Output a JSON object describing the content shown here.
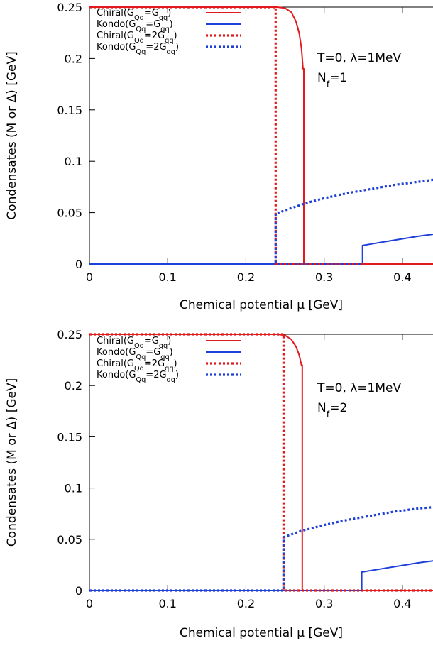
{
  "chart_data": [
    {
      "type": "line",
      "xlabel": "Chemical potential μ [GeV]",
      "ylabel": "Condensates (M or Δ) [GeV]",
      "xlim": [
        0,
        0.45
      ],
      "ylim": [
        0,
        0.25
      ],
      "xticks": [
        0,
        0.1,
        0.2,
        0.3,
        0.4
      ],
      "xtick_labels": [
        "0",
        "0.1",
        "0.2",
        "0.3",
        "0.4"
      ],
      "yticks": [
        0,
        0.05,
        0.1,
        0.15,
        0.2,
        0.25
      ],
      "ytick_labels": [
        "0",
        "0.05",
        "0.1",
        "0.15",
        "0.2",
        "0.25"
      ],
      "annotation": [
        "T=0, λ=1MeV",
        "Nf=1"
      ],
      "legend": {
        "placement": "top-left"
      },
      "series": [
        {
          "name": "Chiral(GQq=Gqq)",
          "color": "#e31a1c",
          "style": "solid",
          "points": [
            [
              0,
              0.25
            ],
            [
              0.24,
              0.25
            ],
            [
              0.25,
              0.249
            ],
            [
              0.258,
              0.245
            ],
            [
              0.264,
              0.236
            ],
            [
              0.268,
              0.225
            ],
            [
              0.271,
              0.21
            ],
            [
              0.273,
              0.19
            ],
            [
              0.274,
              0.19
            ],
            [
              0.274,
              0
            ],
            [
              0.45,
              0
            ]
          ]
        },
        {
          "name": "Kondo(GQq=Gqq)",
          "color": "#1f3fd9",
          "style": "solid",
          "points": [
            [
              0,
              0
            ],
            [
              0.349,
              0
            ],
            [
              0.349,
              0.018
            ],
            [
              0.36,
              0.0195
            ],
            [
              0.38,
              0.022
            ],
            [
              0.4,
              0.0245
            ],
            [
              0.42,
              0.027
            ],
            [
              0.45,
              0.03
            ]
          ]
        },
        {
          "name": "Chiral(GQq=2Gqq)",
          "color": "#e31a1c",
          "style": "dotted",
          "points": [
            [
              0,
              0.25
            ],
            [
              0.238,
              0.25
            ],
            [
              0.238,
              0
            ],
            [
              0.45,
              0
            ]
          ]
        },
        {
          "name": "Kondo(GQq=2Gqq)",
          "color": "#1f3fd9",
          "style": "dotted",
          "points": [
            [
              0,
              0
            ],
            [
              0.238,
              0
            ],
            [
              0.238,
              0.049
            ],
            [
              0.26,
              0.055
            ],
            [
              0.28,
              0.06
            ],
            [
              0.3,
              0.064
            ],
            [
              0.33,
              0.069
            ],
            [
              0.36,
              0.073
            ],
            [
              0.39,
              0.077
            ],
            [
              0.42,
              0.08
            ],
            [
              0.45,
              0.083
            ]
          ]
        }
      ]
    },
    {
      "type": "line",
      "xlabel": "Chemical potential μ [GeV]",
      "ylabel": "Condensates (M or Δ) [GeV]",
      "xlim": [
        0,
        0.45
      ],
      "ylim": [
        0,
        0.25
      ],
      "xticks": [
        0,
        0.1,
        0.2,
        0.3,
        0.4
      ],
      "xtick_labels": [
        "0",
        "0.1",
        "0.2",
        "0.3",
        "0.4"
      ],
      "yticks": [
        0,
        0.05,
        0.1,
        0.15,
        0.2,
        0.25
      ],
      "ytick_labels": [
        "0",
        "0.05",
        "0.1",
        "0.15",
        "0.2",
        "0.25"
      ],
      "annotation": [
        "T=0, λ=1MeV",
        "Nf=2"
      ],
      "legend": {
        "placement": "top-left"
      },
      "series": [
        {
          "name": "Chiral(GQq=Gqq)",
          "color": "#e31a1c",
          "style": "solid",
          "points": [
            [
              0,
              0.25
            ],
            [
              0.24,
              0.25
            ],
            [
              0.25,
              0.249
            ],
            [
              0.258,
              0.245
            ],
            [
              0.264,
              0.238
            ],
            [
              0.268,
              0.23
            ],
            [
              0.271,
              0.22
            ],
            [
              0.272,
              0.22
            ],
            [
              0.272,
              0
            ],
            [
              0.45,
              0
            ]
          ]
        },
        {
          "name": "Kondo(GQq=Gqq)",
          "color": "#1f3fd9",
          "style": "solid",
          "points": [
            [
              0,
              0
            ],
            [
              0.348,
              0
            ],
            [
              0.348,
              0.018
            ],
            [
              0.36,
              0.0195
            ],
            [
              0.38,
              0.022
            ],
            [
              0.4,
              0.0245
            ],
            [
              0.42,
              0.027
            ],
            [
              0.45,
              0.03
            ]
          ]
        },
        {
          "name": "Chiral(GQq=2Gqq)",
          "color": "#e31a1c",
          "style": "dotted",
          "points": [
            [
              0,
              0.25
            ],
            [
              0.248,
              0.25
            ],
            [
              0.248,
              0
            ],
            [
              0.45,
              0
            ]
          ]
        },
        {
          "name": "Kondo(GQq=2Gqq)",
          "color": "#1f3fd9",
          "style": "dotted",
          "points": [
            [
              0,
              0
            ],
            [
              0.248,
              0
            ],
            [
              0.248,
              0.052
            ],
            [
              0.27,
              0.058
            ],
            [
              0.3,
              0.064
            ],
            [
              0.33,
              0.069
            ],
            [
              0.36,
              0.073
            ],
            [
              0.39,
              0.077
            ],
            [
              0.42,
              0.08
            ],
            [
              0.45,
              0.082
            ]
          ]
        }
      ]
    }
  ]
}
